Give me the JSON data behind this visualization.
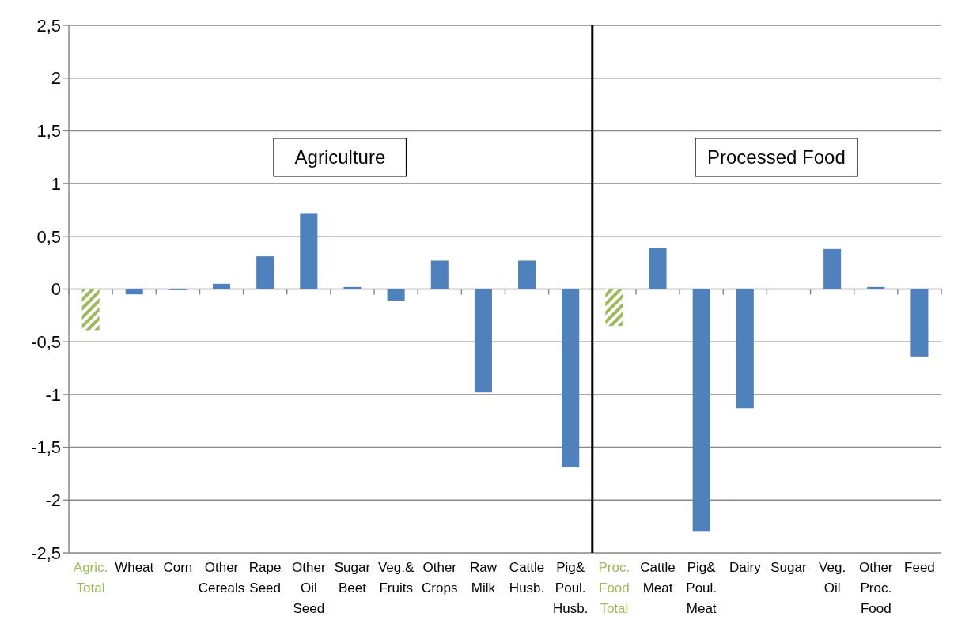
{
  "chart_data": {
    "type": "bar",
    "categories": [
      "Agric. Total",
      "Wheat",
      "Corn",
      "Other Cereals",
      "Rape Seed",
      "Other Oil Seed",
      "Sugar Beet",
      "Veg.& Fruits",
      "Other Crops",
      "Raw Milk",
      "Cattle Husb.",
      "Pig& Poul. Husb.",
      "Proc. Food Total",
      "Cattle Meat",
      "Pig& Poul. Meat",
      "Dairy",
      "Sugar",
      "Veg. Oil",
      "Other Proc. Food",
      "Feed"
    ],
    "values": [
      -0.39,
      -0.05,
      -0.01,
      0.05,
      0.31,
      0.72,
      0.02,
      -0.11,
      0.27,
      -0.98,
      0.27,
      -1.69,
      -0.35,
      0.39,
      -2.3,
      -1.13,
      0,
      0.38,
      0.02,
      -0.64
    ],
    "colors": [
      "#9bbb59",
      "#4f81bd",
      "#4f81bd",
      "#4f81bd",
      "#4f81bd",
      "#4f81bd",
      "#4f81bd",
      "#4f81bd",
      "#4f81bd",
      "#4f81bd",
      "#4f81bd",
      "#4f81bd",
      "#9bbb59",
      "#4f81bd",
      "#4f81bd",
      "#4f81bd",
      "#4f81bd",
      "#4f81bd",
      "#4f81bd",
      "#4f81bd"
    ],
    "ylim": [
      -2.5,
      2.5
    ],
    "yticks": [
      {
        "value": -2.5,
        "label": "-2,5"
      },
      {
        "value": -2,
        "label": "-2"
      },
      {
        "value": -1.5,
        "label": "-1,5"
      },
      {
        "value": -1,
        "label": "-1"
      },
      {
        "value": -0.5,
        "label": "-0,5"
      },
      {
        "value": 0,
        "label": "0"
      },
      {
        "value": 0.5,
        "label": "0,5"
      },
      {
        "value": 1,
        "label": "1"
      },
      {
        "value": 1.5,
        "label": "1,5"
      },
      {
        "value": 2,
        "label": "2"
      },
      {
        "value": 2.5,
        "label": "2,5"
      }
    ],
    "grid": "y",
    "ref_lines": [
      {
        "axis": "x",
        "value": "Proc. Food Total",
        "color": "#000000"
      }
    ],
    "annotations": [
      "Agriculture",
      "Processed Food"
    ]
  }
}
